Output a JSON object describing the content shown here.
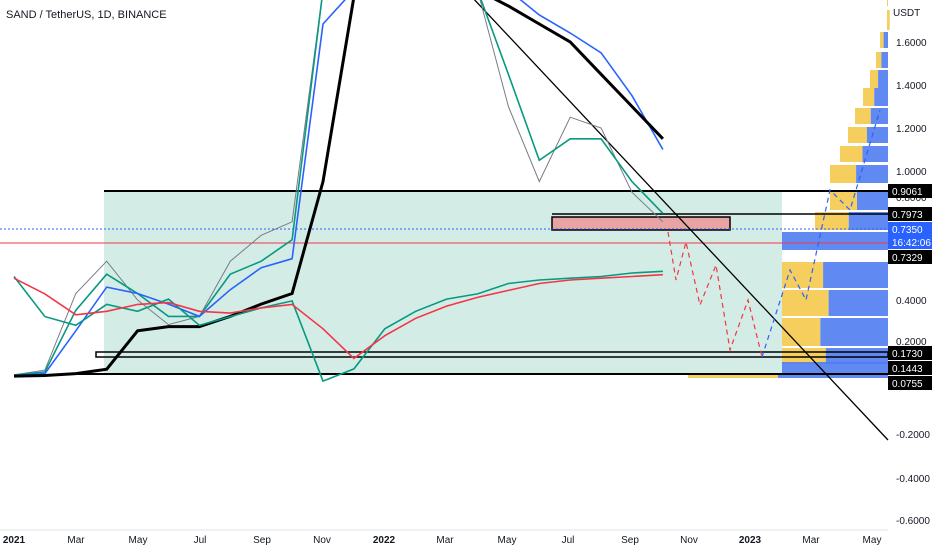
{
  "header": {
    "symbol": "SAND / TetherUS, 1D, BINANCE",
    "unit": "USDT"
  },
  "chart_data": {
    "type": "line",
    "title": "SAND / TetherUS, 1D, BINANCE",
    "y_unit": "USDT",
    "price_axis_ticks": [
      "1.6000",
      "1.4000",
      "1.2000",
      "1.0000",
      "0.8000",
      "0.4000",
      "0.2000"
    ],
    "osc_axis_ticks": [
      "-0.2000",
      "-0.4000",
      "-0.6000"
    ],
    "x_ticks": [
      "2021",
      "Mar",
      "May",
      "Jul",
      "Sep",
      "Nov",
      "2022",
      "Mar",
      "May",
      "Jul",
      "Sep",
      "Nov",
      "2023",
      "Mar",
      "May"
    ],
    "price_labels": [
      {
        "value": "0.9061",
        "style": "dark"
      },
      {
        "value": "0.7973",
        "style": "dark"
      },
      {
        "value": "0.7350",
        "style": "blue"
      },
      {
        "value": "16:42:06",
        "style": "blue"
      },
      {
        "value": "0.7329",
        "style": "dark"
      },
      {
        "value": "0.1730",
        "style": "dark"
      },
      {
        "value": "0.1443",
        "style": "dark"
      },
      {
        "value": "0.0755",
        "style": "dark"
      }
    ],
    "levels": {
      "range_high": 0.9061,
      "range_low": 0.0755,
      "resistance": 0.7973,
      "support_zone": [
        0.1443,
        0.173
      ],
      "current_price": 0.735,
      "red_line": 0.7329
    },
    "series": [
      {
        "key": "price",
        "color": "#787b86",
        "x": [
          "2021-01",
          "2021-02",
          "2021-03",
          "2021-04",
          "2021-05",
          "2021-06",
          "2021-07",
          "2021-08",
          "2021-09",
          "2021-10",
          "2021-11",
          "2021-12",
          "2022-01",
          "2022-02",
          "2022-03",
          "2022-04",
          "2022-05",
          "2022-06",
          "2022-07",
          "2022-08",
          "2022-09",
          "2022-10"
        ],
        "values": [
          0.06,
          0.12,
          0.45,
          0.7,
          0.4,
          0.28,
          0.32,
          0.7,
          0.75,
          0.78,
          3.5,
          5.5,
          4.8,
          3.5,
          2.8,
          2.6,
          1.3,
          0.95,
          1.25,
          1.2,
          0.9,
          0.78
        ]
      },
      {
        "key": "ema_fast",
        "color": "#089981",
        "values": [
          0.06,
          0.1,
          0.35,
          0.6,
          0.45,
          0.32,
          0.32,
          0.6,
          0.7,
          0.74,
          2.8,
          4.8,
          4.7,
          3.6,
          3.0,
          2.7,
          1.45,
          1.05,
          1.15,
          1.15,
          0.95,
          0.8
        ]
      },
      {
        "key": "ema_mid",
        "color": "#2962ff",
        "values": [
          0.05,
          0.08,
          0.25,
          0.5,
          0.45,
          0.38,
          0.32,
          0.48,
          0.65,
          0.72,
          1.8,
          3.8,
          4.4,
          3.9,
          3.5,
          3.2,
          2.3,
          1.9,
          1.7,
          1.55,
          1.35,
          1.1
        ]
      },
      {
        "key": "ema_slow",
        "color": "#000000",
        "values": [
          0.04,
          0.05,
          0.08,
          0.13,
          0.25,
          0.27,
          0.27,
          0.32,
          0.38,
          0.45,
          0.95,
          2.1,
          2.9,
          3.1,
          2.6,
          2.3,
          2.0,
          1.8,
          1.6,
          1.45,
          1.3,
          1.15
        ]
      }
    ],
    "oscillator": {
      "x": [
        "2021-01",
        "2021-02",
        "2021-03",
        "2021-04",
        "2021-05",
        "2021-06",
        "2021-07",
        "2021-08",
        "2021-09",
        "2021-10",
        "2021-11",
        "2021-12",
        "2022-01",
        "2022-02",
        "2022-03",
        "2022-04",
        "2022-05",
        "2022-06",
        "2022-07",
        "2022-08",
        "2022-09",
        "2022-10"
      ],
      "series": [
        {
          "key": "osc_fast",
          "color": "#089981",
          "values": [
            -0.58,
            -0.35,
            -0.3,
            -0.42,
            -0.38,
            -0.45,
            -0.3,
            -0.35,
            -0.4,
            -0.44,
            0.02,
            -0.05,
            -0.28,
            -0.38,
            -0.45,
            -0.48,
            -0.54,
            -0.56,
            -0.57,
            -0.58,
            -0.6,
            -0.61
          ]
        },
        {
          "key": "osc_slow",
          "color": "#f23645",
          "values": [
            -0.57,
            -0.48,
            -0.36,
            -0.38,
            -0.42,
            -0.43,
            -0.38,
            -0.37,
            -0.4,
            -0.42,
            -0.28,
            -0.11,
            -0.24,
            -0.34,
            -0.41,
            -0.46,
            -0.5,
            -0.54,
            -0.56,
            -0.57,
            -0.58,
            -0.59
          ]
        }
      ]
    },
    "volume_profile": {
      "colors": {
        "sell": "#f4c542",
        "buy": "#4f7cf0"
      }
    },
    "grid": false
  }
}
